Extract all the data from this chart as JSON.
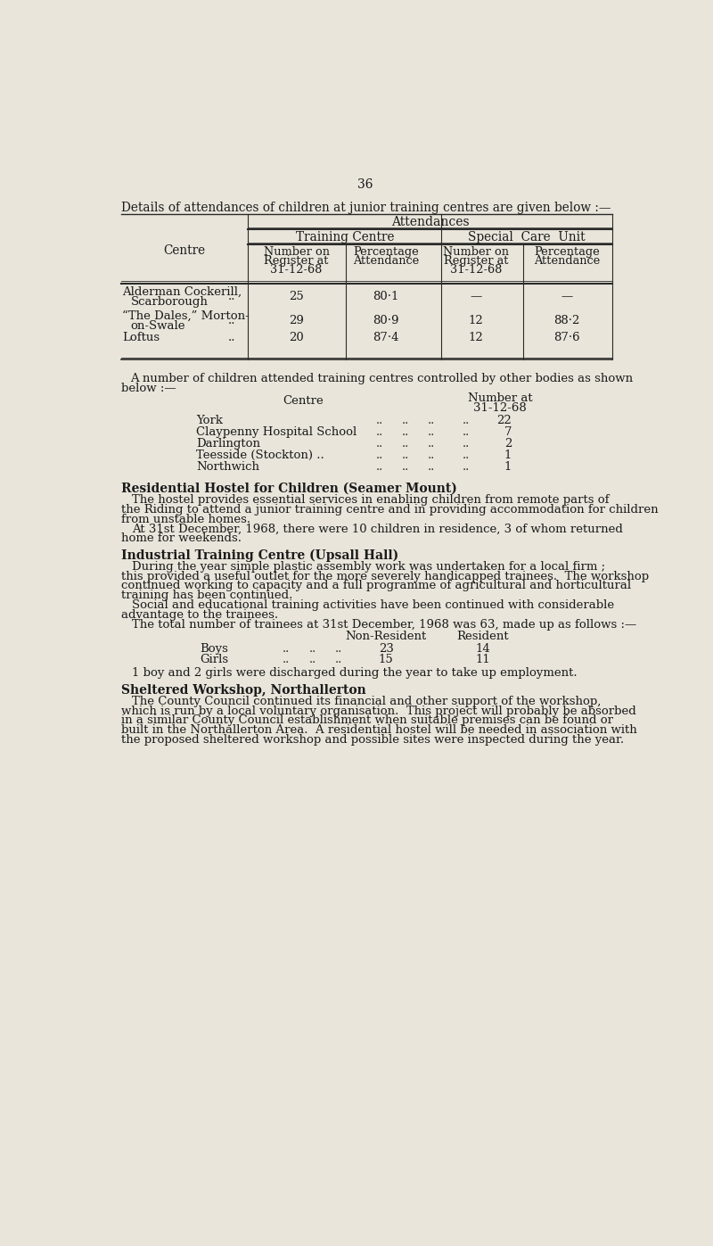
{
  "bg_color": "#e9e5db",
  "text_color": "#1a1a1a",
  "page_number": "36",
  "title_line": "Details of attendances of children at junior training centres are given below :—",
  "attendances_label": "Attendances",
  "training_centre_label": "Training Centre",
  "special_care_label": "Special  Care  Unit",
  "centre_label": "Centre",
  "col_subheaders": [
    "Number on\nRegister at\n31-12-68",
    "Percentage\nAttendance",
    "Number on\nRegister at\n31-12-68",
    "Percentage\nAttendance"
  ],
  "table1_rows": [
    [
      "Alderman Cockerill,",
      "Scarborough",
      "..",
      "25",
      "80·1",
      "—",
      "—"
    ],
    [
      "“The Dales,” Morton-",
      "on-Swale",
      "..",
      "29",
      "80·9",
      "12",
      "88·2"
    ],
    [
      "Loftus",
      "",
      "..",
      "20",
      "87·4",
      "12",
      "87·6"
    ]
  ],
  "para1_line1": "A number of children attended training centres controlled by other bodies as shown",
  "para1_line2": "below :—",
  "t2_col1_header": "Centre",
  "t2_col2_header_line1": "Number at",
  "t2_col2_header_line2": "31-12-68",
  "table2_rows": [
    [
      "York",
      "..",
      "..",
      "..",
      "..",
      "22"
    ],
    [
      "Claypenny Hospital School",
      "..",
      "..",
      "..",
      "..",
      "7"
    ],
    [
      "Darlington",
      "..",
      "..",
      "..",
      "..",
      "2"
    ],
    [
      "Teesside (Stockton) ..",
      "..",
      "..",
      "..",
      "..",
      "1"
    ],
    [
      "Northwich",
      "..",
      "..",
      "..",
      "..",
      "1"
    ]
  ],
  "section1_title": "Residential Hostel for Children (Seamer Mount)",
  "section1_para1_lines": [
    "The hostel provides essential services in enabling children from remote parts of",
    "the Riding to attend a junior training centre and in providing accommodation for children",
    "from unstable homes."
  ],
  "section1_para2_lines": [
    "At 31st December, 1968, there were 10 children in residence, 3 of whom returned",
    "home for weekends."
  ],
  "section2_title": "Industrial Training Centre (Upsall Hall)",
  "section2_para1_lines": [
    "During the year simple plastic assembly work was undertaken for a local firm ;",
    "this provided a useful outlet for the more severely handicapped trainees.  The workshop",
    "continued working to capacity and a full programme of agricultural and horticultural",
    "training has been continued."
  ],
  "section2_para2_lines": [
    "Social and educational training activities have been continued with considerable",
    "advantage to the trainees."
  ],
  "section2_para3": "The total number of trainees at 31st December, 1968 was 63, made up as follows :—",
  "t3_col1": "Non-Resident",
  "t3_col2": "Resident",
  "table3_rows": [
    [
      "Boys",
      "..",
      "..",
      "..",
      "23",
      "14"
    ],
    [
      "Girls",
      "..",
      "..",
      "..",
      "15",
      "11"
    ]
  ],
  "table3_note": "1 boy and 2 girls were discharged during the year to take up employment.",
  "section3_title": "Sheltered Workshop, Northallerton",
  "section3_para_lines": [
    "The County Council continued its financial and other support of the workshop,",
    "which is run by a local voluntary organisation.  This project will probably be absorbed",
    "in a similar County Council establishment when suitable premises can be found or",
    "built in the Northallerton Area.  A residential hostel will be needed in association with",
    "the proposed sheltered workshop and possible sites were inspected during the year."
  ]
}
